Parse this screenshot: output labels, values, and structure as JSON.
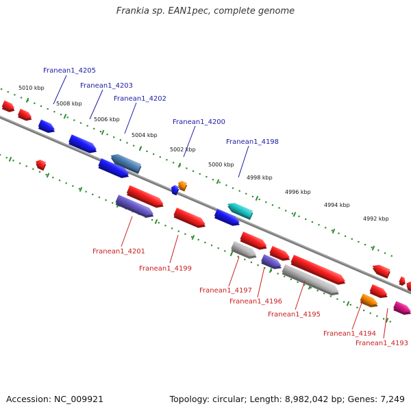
{
  "title": "Frankia sp. EAN1pec, complete genome",
  "footer": {
    "accession": "Accession: NC_009921",
    "stats": "Topology: circular; Length: 8,982,042 bp; Genes: 7,249"
  },
  "colors": {
    "backbone": "#7a7a7a",
    "dots": "#2e8b2e",
    "label_top": "#1a1aa6",
    "label_bottom": "#c81e1e",
    "red": "#ff2020",
    "blue": "#1a1aff",
    "steel": "#4a7fb5",
    "cyan": "#1ec8c8",
    "purple": "#6a5acd",
    "gray": "#bdbdbd",
    "orange": "#ff8c00",
    "magenta": "#e0188a"
  },
  "ticks": [
    {
      "label": "5010 kbp"
    },
    {
      "label": "5008 kbp"
    },
    {
      "label": "5006 kbp"
    },
    {
      "label": "5004 kbp"
    },
    {
      "label": "5002 kbp"
    },
    {
      "label": "5000 kbp"
    },
    {
      "label": "4998 kbp"
    },
    {
      "label": "4996 kbp"
    },
    {
      "label": "4994 kbp"
    },
    {
      "label": "4992 kbp"
    }
  ],
  "gene_labels": [
    {
      "label": "Franean1_4205"
    },
    {
      "label": "Franean1_4203"
    },
    {
      "label": "Franean1_4202"
    },
    {
      "label": "Franean1_4200"
    },
    {
      "label": "Franean1_4198"
    },
    {
      "label": "Franean1_4201"
    },
    {
      "label": "Franean1_4199"
    },
    {
      "label": "Franean1_4197"
    },
    {
      "label": "Franean1_4196"
    },
    {
      "label": "Franean1_4195"
    },
    {
      "label": "Franean1_4194"
    },
    {
      "label": "Franean1_4193"
    }
  ]
}
